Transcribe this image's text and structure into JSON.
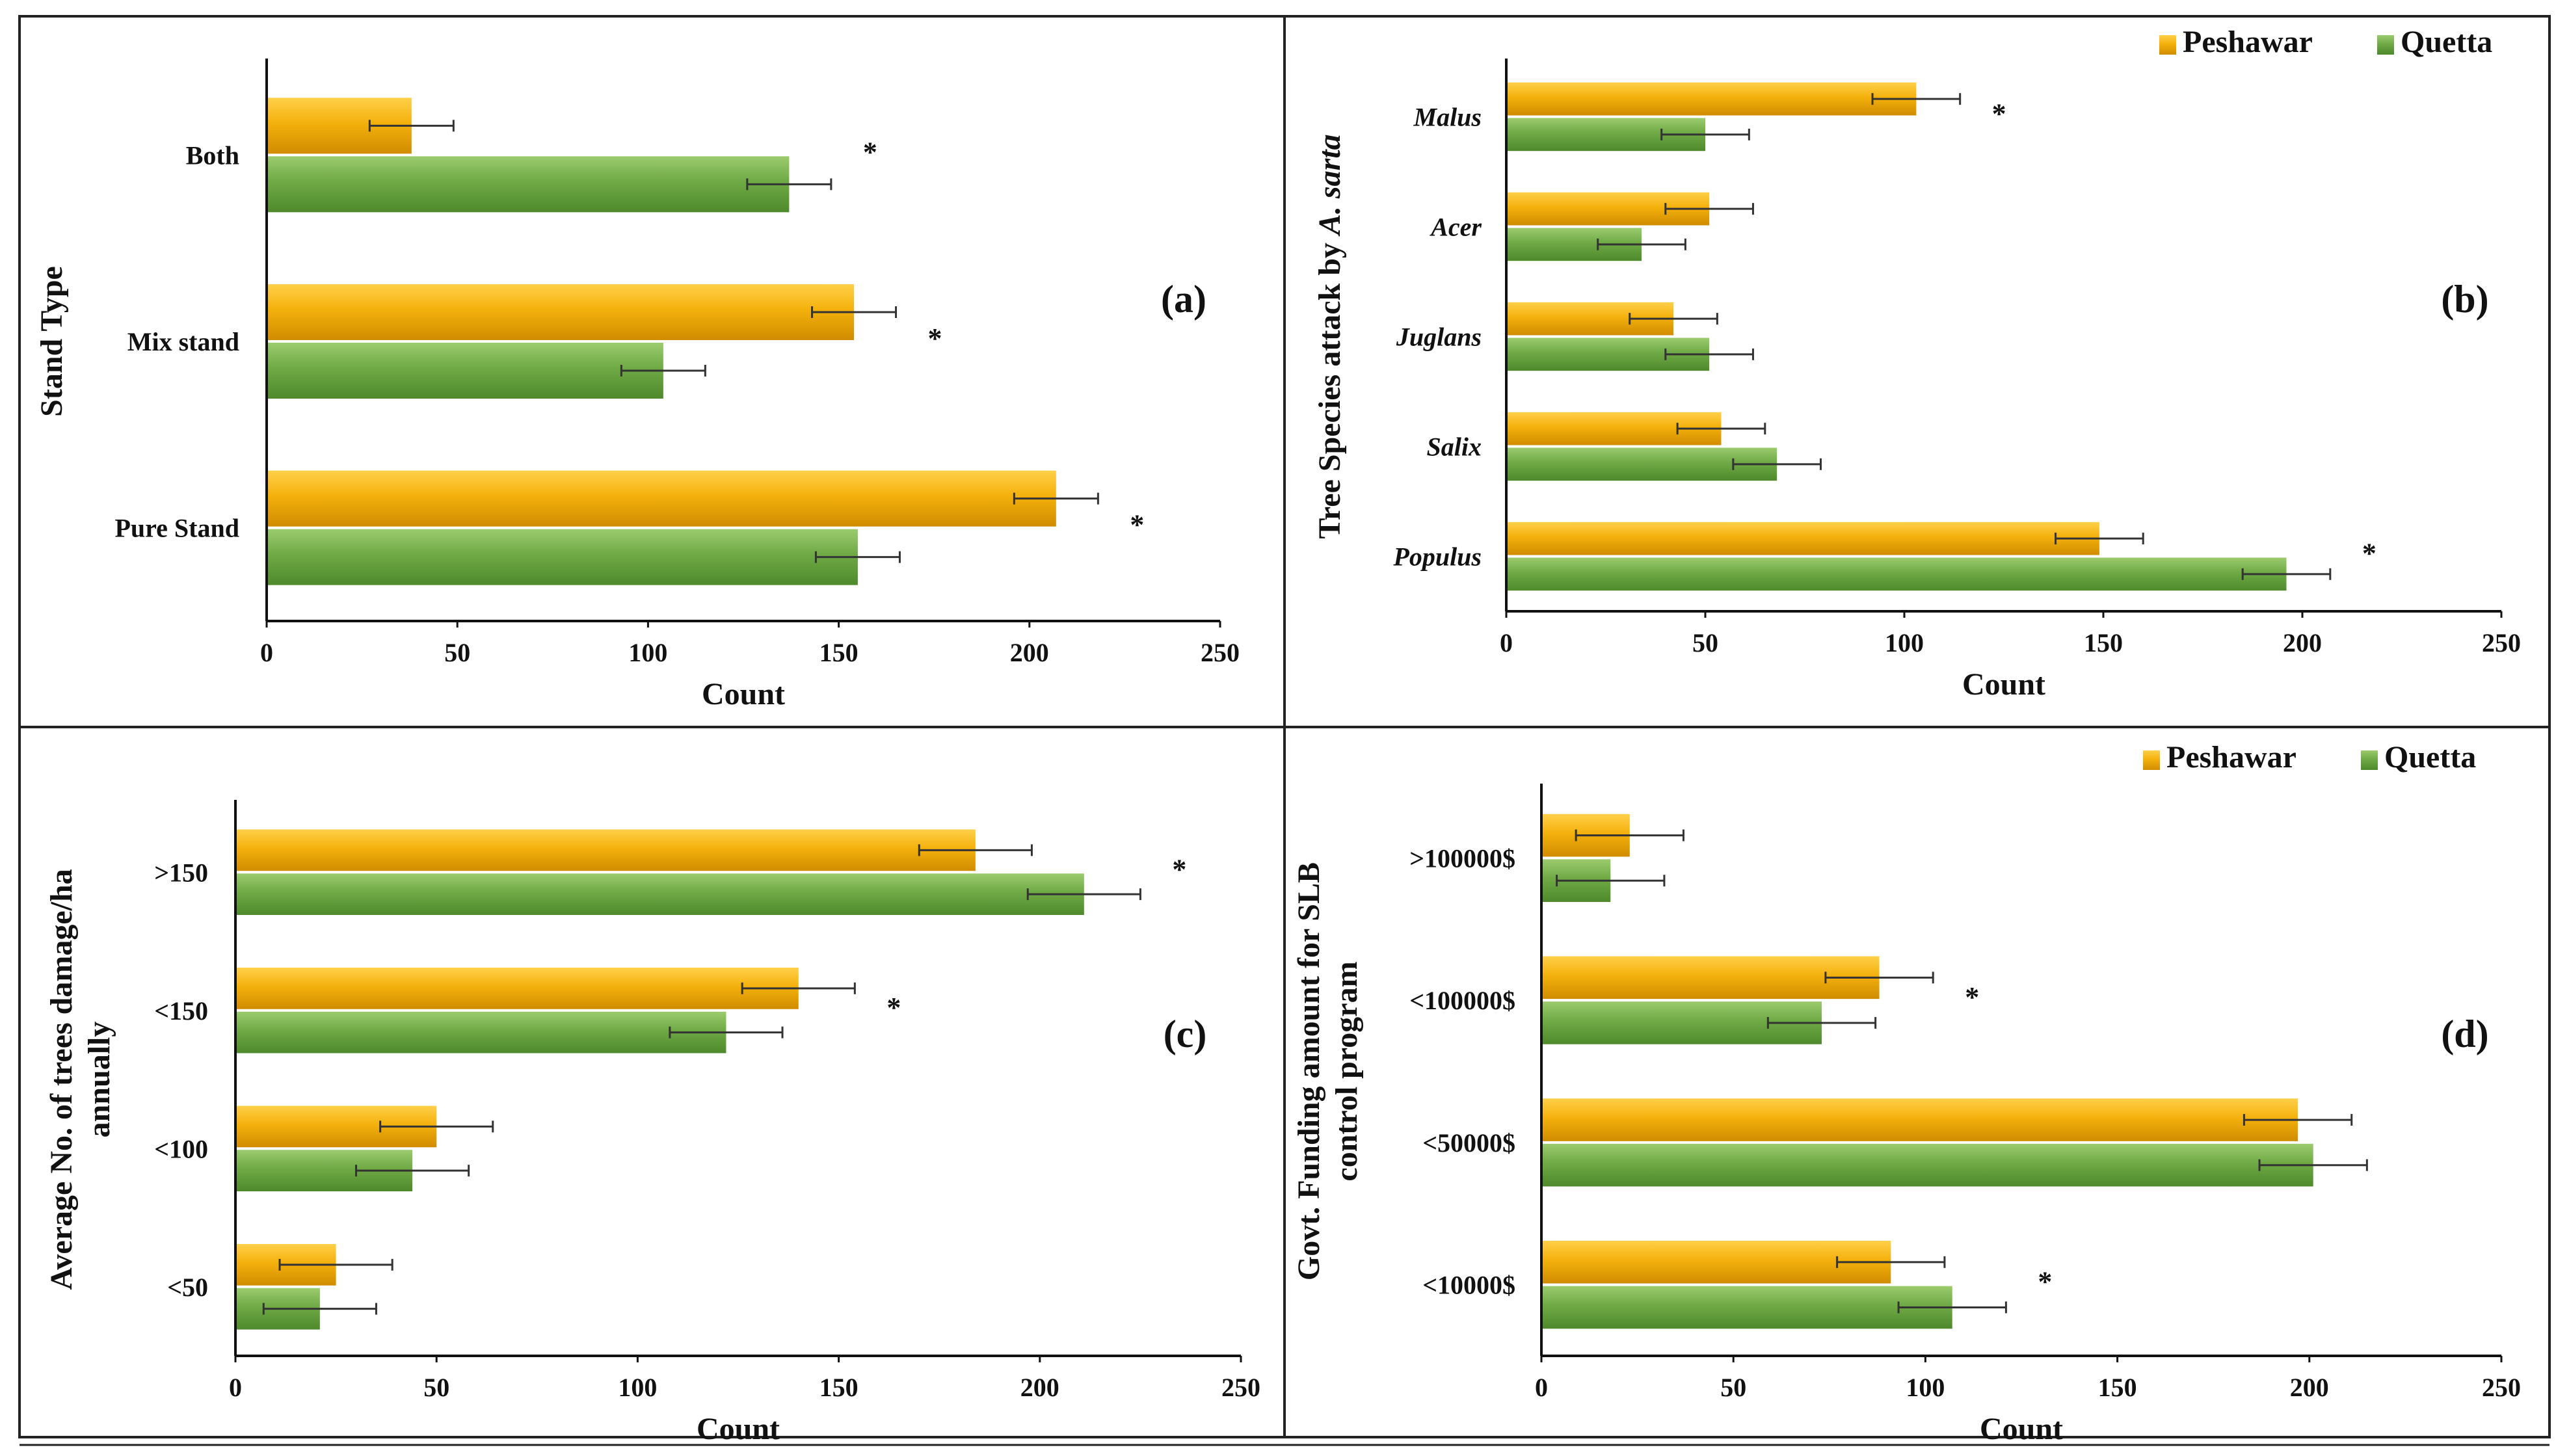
{
  "colors": {
    "peshawar": "#F4B10C",
    "quetta": "#6FAA45",
    "error_bar": "#333333",
    "axis": "#111111"
  },
  "legend": {
    "peshawar": "Peshawar",
    "quetta": "Quetta"
  },
  "chart_data": [
    {
      "panel": "(a)",
      "type": "bar",
      "orientation": "horizontal",
      "ylabel": "Stand Type",
      "xlabel": "Count",
      "xlim": [
        0,
        250
      ],
      "xticks": [
        "0",
        "50",
        "100",
        "150",
        "200",
        "250"
      ],
      "categories": [
        "Both",
        "Mix stand",
        "Pure Stand"
      ],
      "categories_italic": false,
      "series": [
        {
          "name": "Peshawar",
          "values": [
            38,
            154,
            207
          ],
          "errors": [
            11,
            11,
            11
          ]
        },
        {
          "name": "Quetta",
          "values": [
            137,
            104,
            155
          ],
          "errors": [
            11,
            11,
            11
          ]
        }
      ],
      "significance": [
        "*",
        "*",
        "*"
      ],
      "legend": false
    },
    {
      "panel": "(b)",
      "type": "bar",
      "orientation": "horizontal",
      "ylabel": "Tree Species attack by A. sarta",
      "ylabel_plain": "Tree Species attack by ",
      "ylabel_italic": "A. sarta",
      "xlabel": "Count",
      "xlim": [
        0,
        250
      ],
      "xticks": [
        "0",
        "50",
        "100",
        "150",
        "200",
        "250"
      ],
      "categories": [
        "Malus",
        "Acer",
        "Juglans",
        "Salix",
        "Populus"
      ],
      "categories_italic": true,
      "series": [
        {
          "name": "Peshawar",
          "values": [
            103,
            51,
            42,
            54,
            149
          ],
          "errors": [
            11,
            11,
            11,
            11,
            11
          ]
        },
        {
          "name": "Quetta",
          "values": [
            50,
            34,
            51,
            68,
            196
          ],
          "errors": [
            11,
            11,
            11,
            11,
            11
          ]
        }
      ],
      "significance": [
        "*",
        "",
        "",
        "",
        "*"
      ],
      "legend": true
    },
    {
      "panel": "(c)",
      "type": "bar",
      "orientation": "horizontal",
      "ylabel": "Average No. of trees damage/ha annually",
      "ylabel_line1": "Average No. of trees damage/ha",
      "ylabel_line2": "annually",
      "xlabel": "Count",
      "xlim": [
        0,
        250
      ],
      "xticks": [
        "0",
        "50",
        "100",
        "150",
        "200",
        "250"
      ],
      "categories": [
        ">150",
        "<150",
        "<100",
        "<50"
      ],
      "categories_italic": false,
      "series": [
        {
          "name": "Peshawar",
          "values": [
            184,
            140,
            50,
            25
          ],
          "errors": [
            14,
            14,
            14,
            14
          ]
        },
        {
          "name": "Quetta",
          "values": [
            211,
            122,
            44,
            21
          ],
          "errors": [
            14,
            14,
            14,
            14
          ]
        }
      ],
      "significance": [
        "*",
        "*",
        "",
        ""
      ],
      "legend": false
    },
    {
      "panel": "(d)",
      "type": "bar",
      "orientation": "horizontal",
      "ylabel": "Govt. Funding amount for SLB control program",
      "ylabel_line1": "Govt. Funding amount for SLB",
      "ylabel_line2": "control program",
      "xlabel": "Count",
      "xlim": [
        0,
        250
      ],
      "xticks": [
        "0",
        "50",
        "100",
        "150",
        "200",
        "250"
      ],
      "categories": [
        ">100000$",
        "<100000$",
        "<50000$",
        "<10000$"
      ],
      "categories_italic": false,
      "series": [
        {
          "name": "Peshawar",
          "values": [
            23,
            88,
            197,
            91
          ],
          "errors": [
            14,
            14,
            14,
            14
          ]
        },
        {
          "name": "Quetta",
          "values": [
            18,
            73,
            201,
            107
          ],
          "errors": [
            14,
            14,
            14,
            14
          ]
        }
      ],
      "significance": [
        "",
        "*",
        "",
        "*"
      ],
      "legend": true
    }
  ]
}
